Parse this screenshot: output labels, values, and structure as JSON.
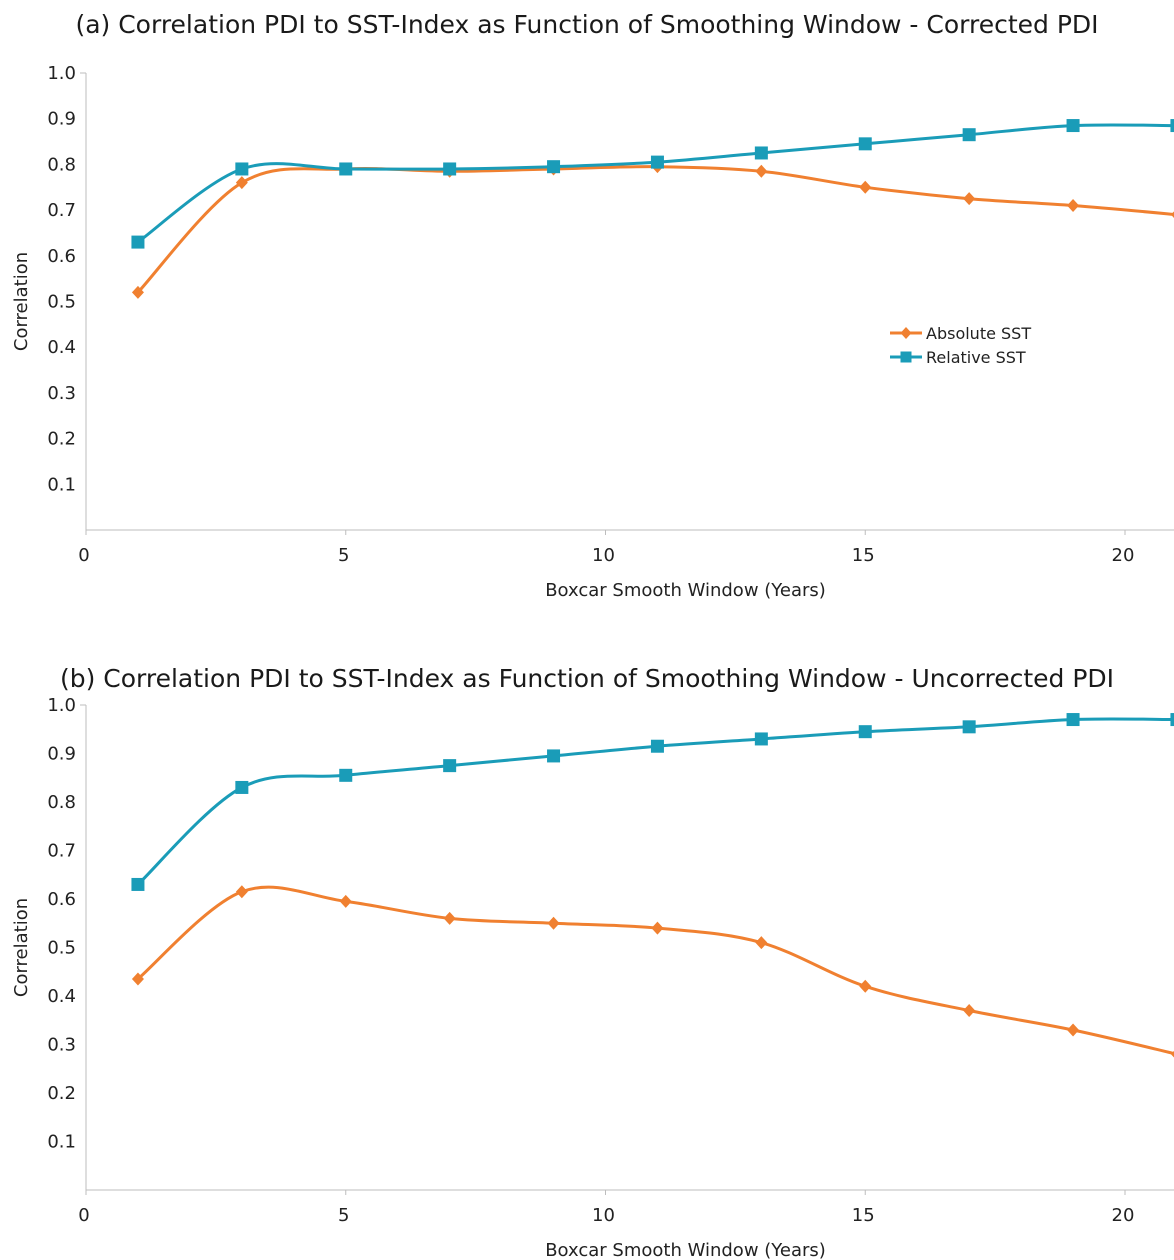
{
  "chart_data": [
    {
      "type": "line",
      "title": "(a) Correlation PDI to SST-Index as Function of Smoothing Window - Corrected PDI",
      "xlabel": "Boxcar Smooth Window (Years)",
      "ylabel": "Correlation",
      "xlim": [
        0,
        21
      ],
      "ylim": [
        0,
        1.0
      ],
      "x_ticks": [
        "0",
        "5",
        "10",
        "15",
        "20"
      ],
      "y_ticks": [
        "0.1",
        "0.2",
        "0.3",
        "0.4",
        "0.5",
        "0.6",
        "0.7",
        "0.8",
        "0.9",
        "1.0"
      ],
      "grid": false,
      "legend": {
        "placement": "middle-right",
        "entries": [
          "Absolute SST",
          "Relative SST"
        ]
      },
      "x": [
        1,
        3,
        5,
        7,
        9,
        11,
        13,
        15,
        17,
        19,
        21
      ],
      "series": [
        {
          "name": "Absolute SST",
          "color": "#f08030",
          "marker": "diamond",
          "values": [
            0.52,
            0.76,
            0.79,
            0.785,
            0.79,
            0.795,
            0.785,
            0.75,
            0.725,
            0.71,
            0.69
          ]
        },
        {
          "name": "Relative SST",
          "color": "#1a9cb8",
          "marker": "square",
          "values": [
            0.63,
            0.79,
            0.79,
            0.79,
            0.795,
            0.805,
            0.825,
            0.845,
            0.865,
            0.885,
            0.885
          ]
        }
      ]
    },
    {
      "type": "line",
      "title": "(b) Correlation PDI to SST-Index as Function of Smoothing Window - Uncorrected PDI",
      "xlabel": "Boxcar Smooth Window (Years)",
      "ylabel": "Correlation",
      "xlim": [
        0,
        21
      ],
      "ylim": [
        0,
        1.0
      ],
      "x_ticks": [
        "0",
        "5",
        "10",
        "15",
        "20"
      ],
      "y_ticks": [
        "0.1",
        "0.2",
        "0.3",
        "0.4",
        "0.5",
        "0.6",
        "0.7",
        "0.8",
        "0.9",
        "1.0"
      ],
      "grid": false,
      "legend": null,
      "x": [
        1,
        3,
        5,
        7,
        9,
        11,
        13,
        15,
        17,
        19,
        21
      ],
      "series": [
        {
          "name": "Absolute SST",
          "color": "#f08030",
          "marker": "diamond",
          "values": [
            0.435,
            0.615,
            0.595,
            0.56,
            0.55,
            0.54,
            0.51,
            0.42,
            0.37,
            0.33,
            0.28
          ]
        },
        {
          "name": "Relative SST",
          "color": "#1a9cb8",
          "marker": "square",
          "values": [
            0.63,
            0.83,
            0.855,
            0.875,
            0.895,
            0.915,
            0.93,
            0.945,
            0.955,
            0.97,
            0.97
          ]
        }
      ]
    }
  ]
}
